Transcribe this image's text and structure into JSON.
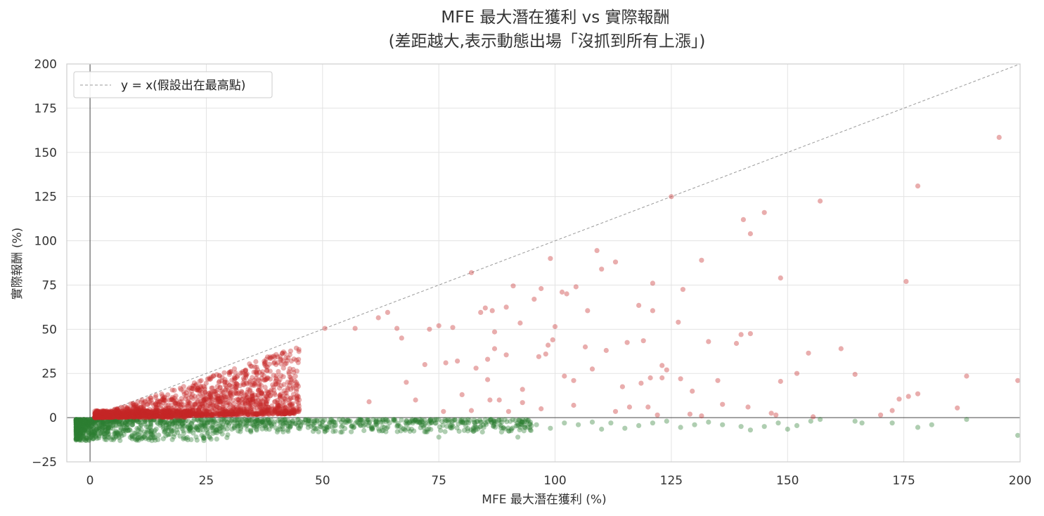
{
  "chart_data": {
    "type": "scatter",
    "title": "MFE 最大潛在獲利 vs 實際報酬",
    "subtitle": "(差距越大,表示動態出場「沒抓到所有上漲」)",
    "xlabel": "MFE 最大潛在獲利 (%)",
    "ylabel": "實際報酬 (%)",
    "xlim": [
      -5,
      200
    ],
    "ylim": [
      -25,
      200
    ],
    "xticks": [
      0,
      25,
      50,
      75,
      100,
      125,
      150,
      175,
      200
    ],
    "yticks": [
      -25,
      0,
      25,
      50,
      75,
      100,
      125,
      150,
      175,
      200
    ],
    "xtick_labels": [
      "0",
      "25",
      "50",
      "75",
      "100",
      "125",
      "150",
      "175",
      "200"
    ],
    "ytick_labels": [
      "−25",
      "0",
      "25",
      "50",
      "75",
      "100",
      "125",
      "150",
      "175",
      "200"
    ],
    "grid": true,
    "legend": {
      "position": "top-left",
      "entries": [
        "y = x(假設出在最高點)"
      ]
    },
    "reference_line": {
      "label": "y = x(假設出在最高點)",
      "style": "dashed",
      "color": "#999999"
    },
    "colors": {
      "positive": "#c62828",
      "negative": "#2e7d32"
    },
    "dense_cluster": {
      "positive": {
        "x_range": [
          1,
          45
        ],
        "y_ratio_range": [
          0.05,
          0.9
        ],
        "count": 2000
      },
      "negative": {
        "x_range": [
          -3,
          95
        ],
        "y_range": [
          -13,
          -1
        ],
        "count": 1300
      }
    },
    "series": [
      {
        "color": "#c62828",
        "points": [
          [
            195.5,
            158.5
          ],
          [
            178,
            131
          ],
          [
            157,
            122.5
          ],
          [
            145,
            116
          ],
          [
            140.5,
            112
          ],
          [
            142,
            104
          ],
          [
            125,
            125
          ],
          [
            109,
            94.5
          ],
          [
            99,
            90
          ],
          [
            131.5,
            89
          ],
          [
            113,
            88
          ],
          [
            110,
            84
          ],
          [
            82,
            82
          ],
          [
            148.5,
            79
          ],
          [
            175.5,
            77
          ],
          [
            121,
            76
          ],
          [
            91,
            74.5
          ],
          [
            104.5,
            74
          ],
          [
            97,
            73
          ],
          [
            127.5,
            72.5
          ],
          [
            101.5,
            71
          ],
          [
            102.5,
            70
          ],
          [
            95.5,
            67
          ],
          [
            89.5,
            62.5
          ],
          [
            85,
            62
          ],
          [
            107,
            60.5
          ],
          [
            121,
            60.5
          ],
          [
            84,
            59.5
          ],
          [
            64,
            59.5
          ],
          [
            118,
            63.5
          ],
          [
            86.5,
            60.5
          ],
          [
            92.5,
            53.5
          ],
          [
            62,
            56.5
          ],
          [
            66,
            50.5
          ],
          [
            126.5,
            54
          ],
          [
            100,
            51.5
          ],
          [
            140,
            47
          ],
          [
            142,
            47.5
          ],
          [
            78,
            51
          ],
          [
            73,
            50
          ],
          [
            75,
            52
          ],
          [
            57,
            50.5
          ],
          [
            50.5,
            50.5
          ],
          [
            87,
            48.5
          ],
          [
            133,
            43
          ],
          [
            99.5,
            44
          ],
          [
            115.5,
            42.5
          ],
          [
            98.5,
            41
          ],
          [
            139,
            42
          ],
          [
            148.5,
            20.5
          ],
          [
            154.5,
            36.5
          ],
          [
            161.5,
            39
          ],
          [
            106.5,
            40
          ],
          [
            111,
            38
          ],
          [
            89.5,
            35.5
          ],
          [
            98,
            36
          ],
          [
            96.5,
            34.5
          ],
          [
            87,
            39
          ],
          [
            85.5,
            33
          ],
          [
            119,
            43.5
          ],
          [
            108,
            27.5
          ],
          [
            120.5,
            22.5
          ],
          [
            123,
            29.5
          ],
          [
            124,
            27
          ],
          [
            123,
            22.5
          ],
          [
            127,
            22
          ],
          [
            129.5,
            15
          ],
          [
            135,
            21
          ],
          [
            114.5,
            17.5
          ],
          [
            118.5,
            19.5
          ],
          [
            152,
            25
          ],
          [
            164.5,
            24.5
          ],
          [
            188.5,
            23.5
          ],
          [
            199.5,
            21
          ],
          [
            176,
            12
          ],
          [
            174,
            10.5
          ],
          [
            178,
            13.5
          ],
          [
            186.5,
            5.5
          ],
          [
            172.5,
            4
          ],
          [
            170,
            1.5
          ],
          [
            146.5,
            2.5
          ],
          [
            155.5,
            0.5
          ],
          [
            141.5,
            6
          ],
          [
            147.5,
            1.5
          ],
          [
            136,
            7.5
          ],
          [
            131.5,
            1
          ],
          [
            129,
            2
          ],
          [
            122,
            1.5
          ],
          [
            120,
            6
          ],
          [
            116,
            6
          ],
          [
            113,
            3.5
          ],
          [
            104,
            7
          ],
          [
            97,
            5
          ],
          [
            93,
            8.5
          ],
          [
            90,
            3.5
          ],
          [
            86,
            10
          ],
          [
            80,
            13
          ],
          [
            76.5,
            31
          ],
          [
            79,
            32
          ],
          [
            83,
            28
          ],
          [
            72,
            30
          ],
          [
            67,
            45
          ],
          [
            68,
            20
          ],
          [
            85.5,
            21.5
          ],
          [
            93,
            16
          ],
          [
            102,
            23.5
          ],
          [
            104,
            21
          ],
          [
            88,
            10
          ],
          [
            82,
            4
          ],
          [
            76,
            3.5
          ],
          [
            70,
            10
          ],
          [
            60,
            9
          ]
        ]
      },
      {
        "color": "#2e7d32",
        "points": [
          [
            199.5,
            -10
          ],
          [
            188.5,
            -1
          ],
          [
            181,
            -4
          ],
          [
            178,
            -5.5
          ],
          [
            172.5,
            -3
          ],
          [
            166,
            -3
          ],
          [
            164.5,
            -2
          ],
          [
            157,
            -1
          ],
          [
            155,
            -2
          ],
          [
            152,
            -4.5
          ],
          [
            150,
            -6.5
          ],
          [
            148,
            -3
          ],
          [
            145,
            -5
          ],
          [
            142,
            -7
          ],
          [
            140,
            -5
          ],
          [
            136,
            -4
          ],
          [
            133,
            -2.5
          ],
          [
            130,
            -4
          ],
          [
            127,
            -5.5
          ],
          [
            124,
            -2
          ],
          [
            121,
            -3
          ],
          [
            118,
            -4.5
          ],
          [
            115,
            -6
          ],
          [
            112,
            -3
          ],
          [
            110,
            -6.5
          ],
          [
            108,
            -2.5
          ],
          [
            105,
            -4
          ],
          [
            102,
            -3
          ],
          [
            99,
            -6
          ],
          [
            96,
            -4
          ],
          [
            93,
            -2.5
          ],
          [
            92,
            -11
          ],
          [
            90,
            -7.5
          ],
          [
            87,
            -3
          ],
          [
            84,
            -5
          ],
          [
            81,
            -2.5
          ],
          [
            78,
            -5
          ],
          [
            75,
            -11
          ],
          [
            72,
            -4
          ],
          [
            69,
            -2
          ]
        ]
      }
    ]
  }
}
